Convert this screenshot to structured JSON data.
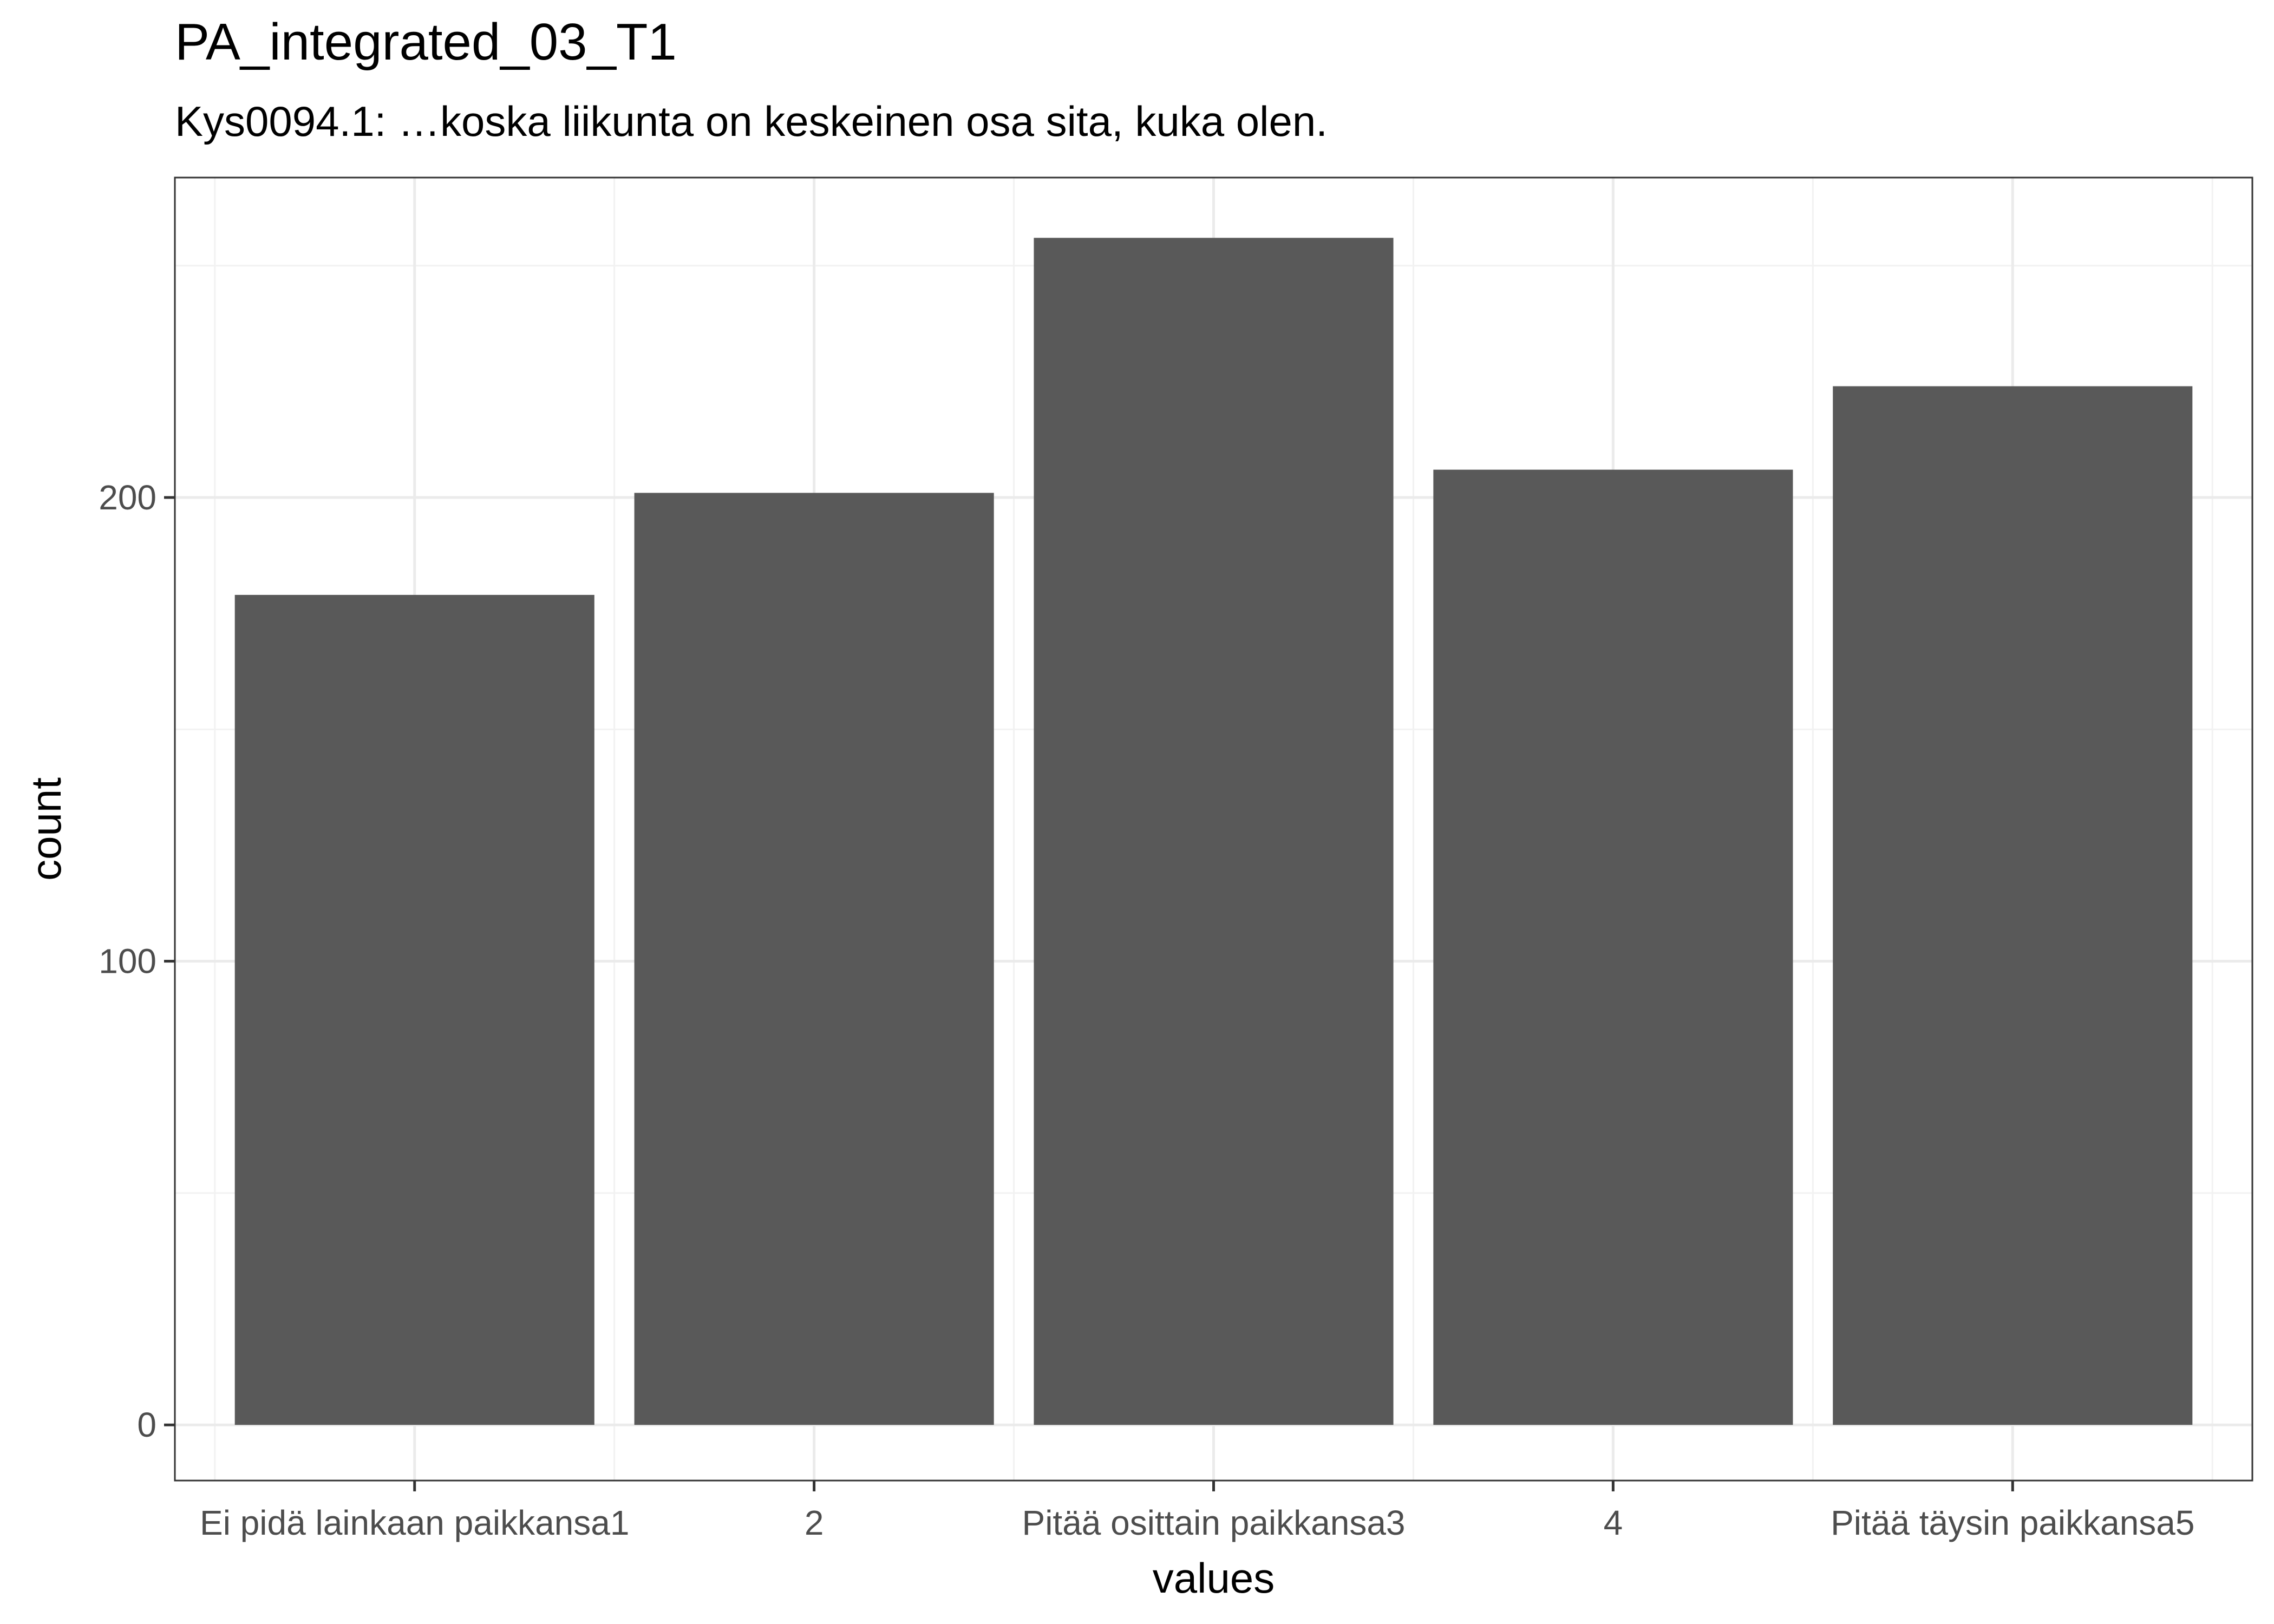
{
  "title": "PA_integrated_03_T1",
  "subtitle": "Kys0094.1: …koska liikunta on keskeinen osa sita, kuka olen.",
  "chart_data": {
    "type": "bar",
    "title": "PA_integrated_03_T1",
    "subtitle": "Kys0094.1: …koska liikunta on keskeinen osa sita, kuka olen.",
    "xlabel": "values",
    "ylabel": "count",
    "categories": [
      "Ei pidä lainkaan paikkansa1",
      "2",
      "Pitää osittain paikkansa3",
      "4",
      "Pitää täysin paikkansa5"
    ],
    "values": [
      179,
      201,
      256,
      206,
      224
    ],
    "ylim": [
      -12,
      269
    ],
    "yticks": [
      0,
      100,
      200
    ],
    "grid": true,
    "bar_color": "#595959",
    "grid_major_color": "#ebebeb",
    "grid_minor_color": "#f2f2f2"
  }
}
